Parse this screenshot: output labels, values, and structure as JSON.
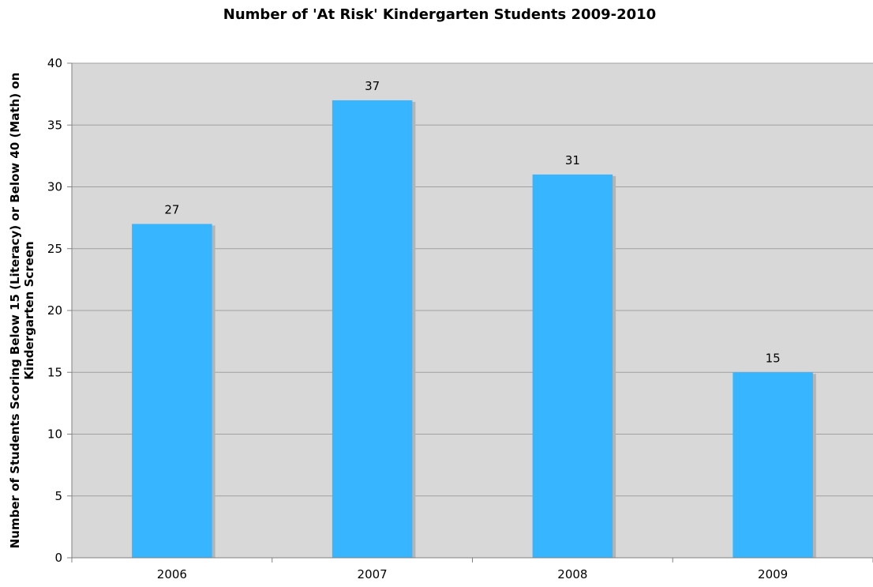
{
  "chart_data": {
    "type": "bar",
    "title": "Number of 'At Risk' Kindergarten Students 2009-2010",
    "ylabel_lines": [
      "Number of Students Scoring Below 15 (Literacy) or Below 40 (Math) on",
      "Kindergarten Screen"
    ],
    "xlabel": "",
    "categories": [
      "2006",
      "2007",
      "2008",
      "2009"
    ],
    "values": [
      27,
      37,
      31,
      15
    ],
    "data_labels": [
      "27",
      "37",
      "31",
      "15"
    ],
    "ylim": [
      0,
      40
    ],
    "yticks": [
      0,
      5,
      10,
      15,
      20,
      25,
      30,
      35,
      40
    ],
    "grid": true,
    "legend": "none",
    "colors": {
      "bar": "#37B6FF",
      "bar_shadow": "#B4B4B4",
      "plot_background": "#D8D8D8",
      "gridline": "#A0A0A0",
      "axis": "#808080"
    }
  }
}
